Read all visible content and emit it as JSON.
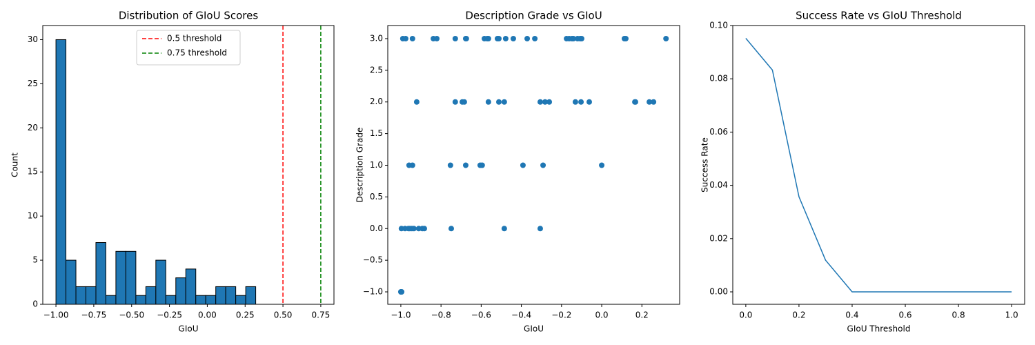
{
  "chart_data": [
    {
      "type": "histogram",
      "title": "Distribution of GIoU Scores",
      "xlabel": "GIoU",
      "ylabel": "Count",
      "bins": [
        -1.0,
        -0.934,
        -0.868,
        -0.802,
        -0.736,
        -0.67,
        -0.604,
        -0.538,
        -0.472,
        -0.406,
        -0.34,
        -0.274,
        -0.208,
        -0.142,
        -0.076,
        -0.01,
        0.056,
        0.122,
        0.188,
        0.254,
        0.32
      ],
      "values": [
        30,
        5,
        2,
        2,
        7,
        1,
        6,
        6,
        1,
        2,
        5,
        1,
        3,
        4,
        1,
        1,
        2,
        2,
        1,
        2
      ],
      "color": "#1f77b4",
      "edgecolor": "#000000",
      "lines": [
        {
          "name": "0.5 threshold",
          "value": 0.5,
          "color": "#ff0000"
        },
        {
          "name": "0.75 threshold",
          "value": 0.75,
          "color": "#008000"
        }
      ],
      "legend": "upper center",
      "xlim": [
        -1.087,
        0.837
      ],
      "ylim": [
        0,
        31.6
      ],
      "xticks": [
        {
          "value": -1.0,
          "label": "−1.00"
        },
        {
          "value": -0.75,
          "label": "−0.75"
        },
        {
          "value": -0.5,
          "label": "−0.50"
        },
        {
          "value": -0.25,
          "label": "−0.25"
        },
        {
          "value": 0,
          "label": "0.00"
        },
        {
          "value": 0.25,
          "label": "0.25"
        },
        {
          "value": 0.5,
          "label": "0.50"
        },
        {
          "value": 0.75,
          "label": "0.75"
        }
      ],
      "yticks": [
        0,
        5,
        10,
        15,
        20,
        25,
        30
      ]
    },
    {
      "type": "scatter",
      "title": "Description Grade vs GIoU",
      "xlabel": "GIoU",
      "ylabel": "Description Grade",
      "color": "#1f77b4",
      "x": [
        -0.99,
        -0.976,
        -0.942,
        -0.838,
        -0.821,
        -0.729,
        -0.677,
        -0.674,
        -0.584,
        -0.57,
        -0.564,
        -0.519,
        -0.512,
        -0.478,
        -0.44,
        -0.371,
        -0.333,
        -0.175,
        -0.162,
        -0.148,
        -0.141,
        -0.12,
        -0.107,
        -0.1,
        0.113,
        0.12,
        0.32,
        -0.921,
        -0.729,
        -0.694,
        -0.684,
        -0.564,
        -0.512,
        -0.485,
        -0.306,
        -0.282,
        -0.261,
        -0.131,
        -0.103,
        -0.062,
        0.165,
        0.168,
        0.237,
        0.258,
        -0.959,
        -0.942,
        -0.753,
        -0.677,
        -0.605,
        -0.595,
        -0.392,
        -0.292,
        0.0,
        -0.997,
        -0.979,
        -0.962,
        -0.955,
        -0.945,
        -0.935,
        -0.911,
        -0.893,
        -0.883,
        -0.749,
        -0.485,
        -0.306,
        -1.0,
        -0.998,
        -0.996
      ],
      "values": [
        3,
        3,
        3,
        3,
        3,
        3,
        3,
        3,
        3,
        3,
        3,
        3,
        3,
        3,
        3,
        3,
        3,
        3,
        3,
        3,
        3,
        3,
        3,
        3,
        3,
        3,
        3,
        2,
        2,
        2,
        2,
        2,
        2,
        2,
        2,
        2,
        2,
        2,
        2,
        2,
        2,
        2,
        2,
        2,
        1,
        1,
        1,
        1,
        1,
        1,
        1,
        1,
        1,
        0,
        0,
        0,
        0,
        0,
        0,
        0,
        0,
        0,
        0,
        0,
        0,
        -1,
        -1,
        -1
      ],
      "xlim": [
        -1.065,
        0.388
      ],
      "ylim": [
        -1.196,
        3.207
      ],
      "xticks": [
        {
          "value": -1.0,
          "label": "−1.0"
        },
        {
          "value": -0.8,
          "label": "−0.8"
        },
        {
          "value": -0.6,
          "label": "−0.6"
        },
        {
          "value": -0.4,
          "label": "−0.4"
        },
        {
          "value": -0.2,
          "label": "−0.2"
        },
        {
          "value": 0,
          "label": "0.0"
        },
        {
          "value": 0.2,
          "label": "0.2"
        }
      ],
      "yticks": [
        {
          "value": -1.0,
          "label": "−1.0"
        },
        {
          "value": -0.5,
          "label": "−0.5"
        },
        {
          "value": 0,
          "label": "0.0"
        },
        {
          "value": 0.5,
          "label": "0.5"
        },
        {
          "value": 1.0,
          "label": "1.0"
        },
        {
          "value": 1.5,
          "label": "1.5"
        },
        {
          "value": 2.0,
          "label": "2.0"
        },
        {
          "value": 2.5,
          "label": "2.5"
        },
        {
          "value": 3.0,
          "label": "3.0"
        }
      ]
    },
    {
      "type": "line",
      "title": "Success Rate vs GIoU Threshold",
      "xlabel": "GIoU Threshold",
      "ylabel": "Success Rate",
      "color": "#1f77b4",
      "x": [
        0,
        0.1,
        0.2,
        0.3,
        0.4,
        0.5,
        0.6,
        0.7,
        0.8,
        0.9,
        1.0
      ],
      "values": [
        0.0952,
        0.0833,
        0.0357,
        0.0119,
        0,
        0,
        0,
        0,
        0,
        0,
        0
      ],
      "xlim": [
        -0.049,
        1.049
      ],
      "ylim": [
        -0.00466,
        0.1
      ],
      "xticks": [
        {
          "value": 0,
          "label": "0.0"
        },
        0.2,
        0.4,
        0.6,
        0.8,
        {
          "value": 1,
          "label": "1.0"
        }
      ],
      "yticks": [
        {
          "value": 0,
          "label": "0.00"
        },
        {
          "value": 0.02,
          "label": "0.02"
        },
        {
          "value": 0.04,
          "label": "0.04"
        },
        {
          "value": 0.06,
          "label": "0.06"
        },
        {
          "value": 0.08,
          "label": "0.08"
        },
        {
          "value": 0.1,
          "label": "0.10"
        }
      ]
    }
  ]
}
